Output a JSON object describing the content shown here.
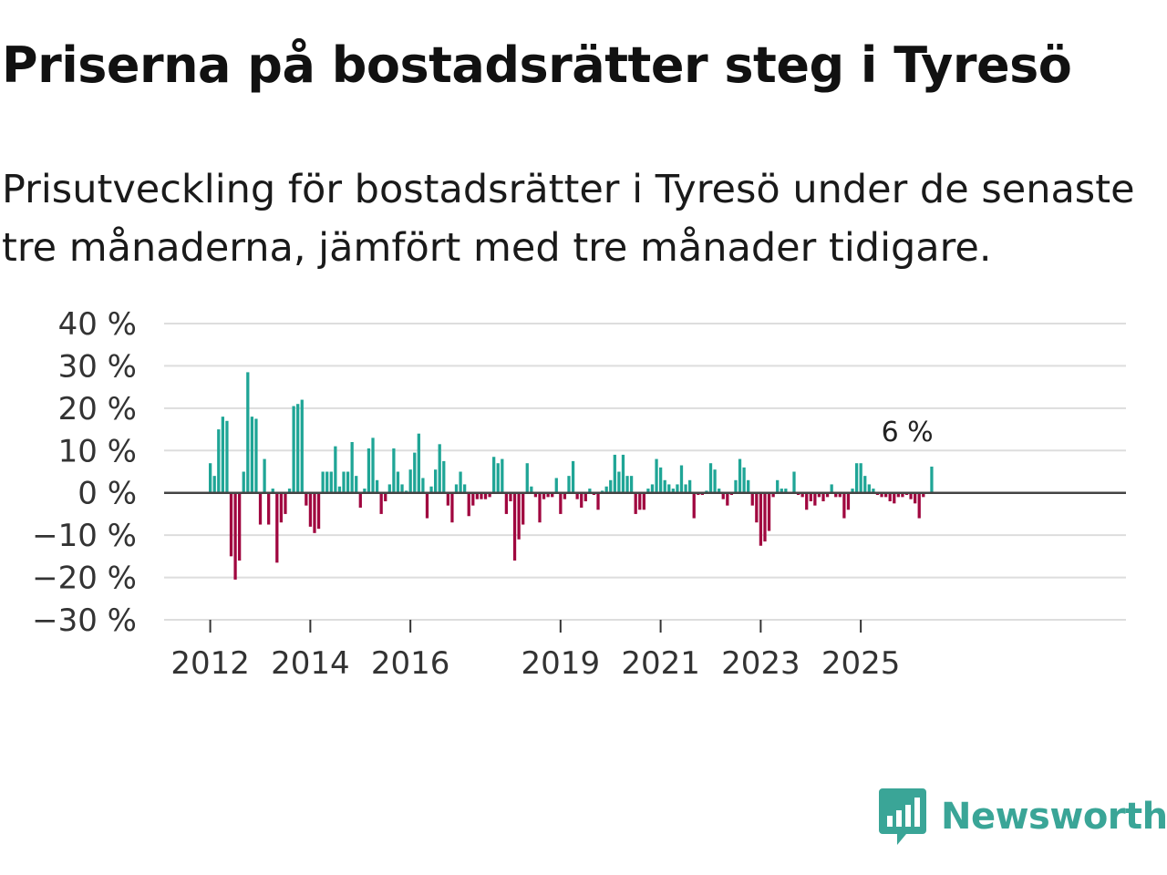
{
  "title": "Priserna på bostadsrätter steg i Tyresö",
  "subtitle": "Prisutveckling för bostadsrätter i Tyresö under de senaste tre månaderna, jämfört med tre månader tidigare.",
  "brand": {
    "name": "Newsworthy",
    "icon": "newsworthy-logo-icon"
  },
  "colors": {
    "positive": "#1fa596",
    "negative": "#a0063f",
    "grid": "#dddddd",
    "zero": "#444444",
    "brand": "#3aa597"
  },
  "chart_data": {
    "type": "bar",
    "title": "Priserna på bostadsrätter steg i Tyresö",
    "xlabel": "",
    "ylabel": "",
    "unit": "%",
    "ylim": [
      -30,
      40
    ],
    "yticks": [
      40,
      30,
      20,
      10,
      0,
      -10,
      -20,
      -30
    ],
    "ytick_labels": [
      "40 %",
      "30 %",
      "20 %",
      "10 %",
      "0 %",
      "−10 %",
      "−20 %",
      "−30 %"
    ],
    "xticks": [
      "2012",
      "2014",
      "2016",
      "2019",
      "2021",
      "2023",
      "2025"
    ],
    "x_start": "2012-01",
    "x_end": "2025-12",
    "grid": true,
    "annotation": {
      "text": "6 %",
      "month": "2025-12",
      "value": 6.2
    },
    "values": [
      7,
      4,
      15,
      18,
      17,
      -15,
      -20.5,
      -16,
      5,
      28.5,
      18,
      17.5,
      -7.5,
      8,
      -7.5,
      1,
      -16.5,
      -7,
      -5,
      1,
      20.5,
      21,
      22,
      -3,
      -8,
      -9.5,
      -8.5,
      5,
      5,
      5,
      11,
      1.5,
      5,
      5,
      12,
      4,
      -3.5,
      1,
      10.5,
      13,
      3,
      -5,
      -2,
      2,
      10.5,
      5,
      2,
      0.5,
      5.5,
      9.5,
      14,
      3.5,
      -6,
      1.5,
      5.5,
      11.5,
      7.5,
      -3,
      -7,
      2,
      5,
      2,
      -5.5,
      -3,
      -1.5,
      -1.5,
      -1.5,
      -1,
      8.5,
      7,
      8,
      -5,
      -2,
      -16,
      -11,
      -7.5,
      7,
      1.5,
      -1,
      -7,
      -1.5,
      -1,
      -1,
      3.5,
      -5,
      -1.5,
      4,
      7.5,
      -1.5,
      -3.5,
      -2,
      1,
      -0.5,
      -4,
      0.5,
      1.5,
      3,
      9,
      5,
      9,
      4,
      4,
      -5,
      -4,
      -4,
      1,
      2,
      8,
      6,
      3,
      2,
      1,
      2,
      6.5,
      2,
      3,
      -6,
      -0.5,
      -0.5,
      0.5,
      7,
      5.5,
      1,
      -1.5,
      -3,
      -0.5,
      3,
      8,
      6,
      3,
      -3,
      -7,
      -12.5,
      -11.5,
      -9,
      -1,
      3,
      1,
      1,
      0,
      5,
      -0.5,
      -1,
      -4,
      -2,
      -3,
      -1,
      -2,
      -1,
      2,
      -1,
      -1,
      -6,
      -4,
      1,
      7,
      7,
      4,
      2,
      1,
      -0.5,
      -1,
      -1,
      -2,
      -2.5,
      -1,
      -1,
      -0.5,
      -1.5,
      -2.5,
      -6,
      -1,
      0,
      6.2
    ]
  }
}
